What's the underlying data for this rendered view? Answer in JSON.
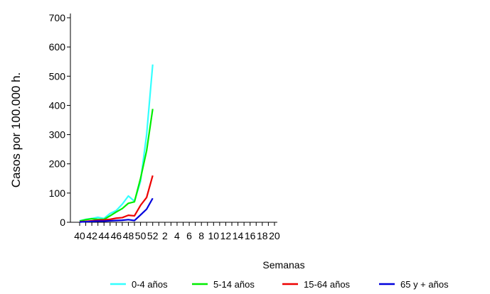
{
  "chart_data": {
    "type": "line",
    "xlabel": "Semanas",
    "ylabel": "Casos por 100.000 h.",
    "ylim": [
      0,
      700
    ],
    "yticks": [
      0,
      100,
      200,
      300,
      400,
      500,
      600,
      700
    ],
    "x_categories": [
      "40",
      "41",
      "42",
      "43",
      "44",
      "45",
      "46",
      "47",
      "48",
      "49",
      "50",
      "51",
      "52",
      "1",
      "2",
      "3",
      "4",
      "5",
      "6",
      "7",
      "8",
      "9",
      "10",
      "11",
      "12",
      "13",
      "14",
      "15",
      "16",
      "17",
      "18",
      "19",
      "20"
    ],
    "x_tick_labels": [
      "40",
      "42",
      "44",
      "46",
      "48",
      "50",
      "52",
      "2",
      "4",
      "6",
      "8",
      "10",
      "12",
      "14",
      "16",
      "18",
      "20"
    ],
    "grid": false,
    "legend_position": "bottom",
    "series": [
      {
        "name": "0-4 años",
        "color": "#33ffff",
        "values": [
          5,
          10,
          13,
          17,
          13,
          30,
          40,
          62,
          90,
          72,
          140,
          300,
          540
        ]
      },
      {
        "name": "5-14 años",
        "color": "#00ee00",
        "values": [
          4,
          9,
          12,
          10,
          10,
          22,
          35,
          47,
          65,
          70,
          150,
          245,
          388
        ]
      },
      {
        "name": "15-64 años",
        "color": "#ee0000",
        "values": [
          2,
          3,
          5,
          7,
          8,
          10,
          14,
          16,
          24,
          22,
          58,
          85,
          160
        ]
      },
      {
        "name": "65 y + años",
        "color": "#0000dd",
        "values": [
          1,
          2,
          3,
          4,
          4,
          5,
          6,
          7,
          9,
          6,
          25,
          45,
          82
        ]
      }
    ]
  }
}
